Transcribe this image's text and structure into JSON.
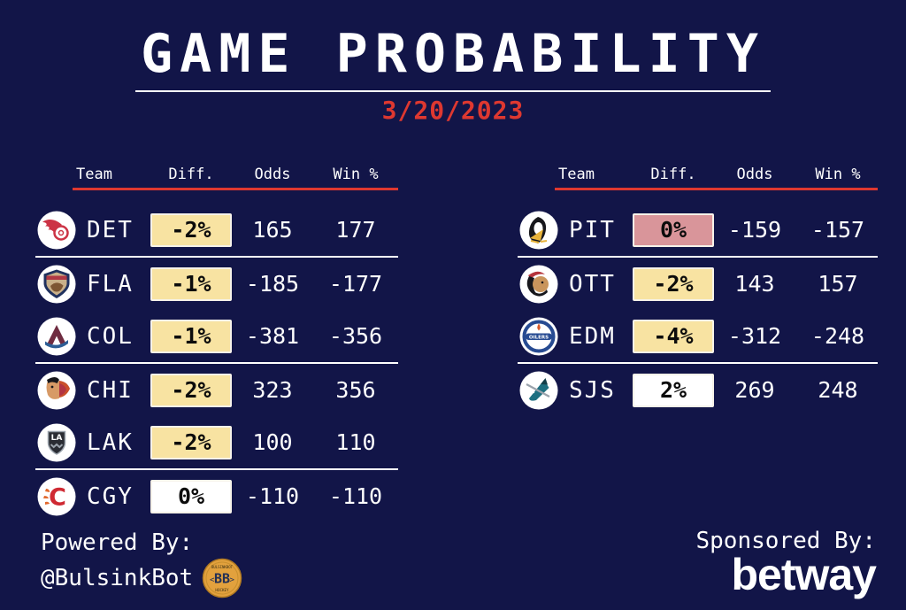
{
  "palette": {
    "bg": "#121548",
    "accent_red": "#de3830",
    "text": "#ffffff",
    "badge_yellow": "#f8e3a2",
    "badge_pink": "#d9959a",
    "badge_white": "#ffffff"
  },
  "header": {
    "title": "GAME PROBABILITY",
    "date": "3/20/2023"
  },
  "columns": [
    "Team",
    "Diff.",
    "Odds",
    "Win %"
  ],
  "tables": [
    {
      "id": "left",
      "rows": [
        {
          "team": "DET",
          "logo": "det",
          "diff": "-2%",
          "badge": "yellow",
          "odds": "165",
          "win": "177",
          "divider_after": true
        },
        {
          "team": "FLA",
          "logo": "fla",
          "diff": "-1%",
          "badge": "yellow",
          "odds": "-185",
          "win": "-177",
          "divider_after": false
        },
        {
          "team": "COL",
          "logo": "col",
          "diff": "-1%",
          "badge": "yellow",
          "odds": "-381",
          "win": "-356",
          "divider_after": true
        },
        {
          "team": "CHI",
          "logo": "chi",
          "diff": "-2%",
          "badge": "yellow",
          "odds": "323",
          "win": "356",
          "divider_after": false
        },
        {
          "team": "LAK",
          "logo": "lak",
          "diff": "-2%",
          "badge": "yellow",
          "odds": "100",
          "win": "110",
          "divider_after": true
        },
        {
          "team": "CGY",
          "logo": "cgy",
          "diff": "0%",
          "badge": "white",
          "odds": "-110",
          "win": "-110",
          "divider_after": false
        }
      ]
    },
    {
      "id": "right",
      "rows": [
        {
          "team": "PIT",
          "logo": "pit",
          "diff": "0%",
          "badge": "pink",
          "odds": "-159",
          "win": "-157",
          "divider_after": true
        },
        {
          "team": "OTT",
          "logo": "ott",
          "diff": "-2%",
          "badge": "yellow",
          "odds": "143",
          "win": "157",
          "divider_after": false
        },
        {
          "team": "EDM",
          "logo": "edm",
          "diff": "-4%",
          "badge": "yellow",
          "odds": "-312",
          "win": "-248",
          "divider_after": true
        },
        {
          "team": "SJS",
          "logo": "sjs",
          "diff": "2%",
          "badge": "white",
          "odds": "269",
          "win": "248",
          "divider_after": false
        }
      ]
    }
  ],
  "footer": {
    "powered_label": "Powered By:",
    "powered_handle": "@BulsinkBot",
    "coin_letters": "BB",
    "coin_top": "BULSINKBOT",
    "coin_bottom": "HOCKEY",
    "coin_color": "#e2a13d",
    "sponsored_label": "Sponsored By:",
    "sponsor_name": "betway"
  },
  "chart_data": [
    {
      "type": "table",
      "title": "GAME PROBABILITY",
      "subtitle": "3/20/2023",
      "columns": [
        "Team",
        "Diff.",
        "Odds",
        "Win %"
      ],
      "rows": [
        [
          "DET",
          "-2%",
          165,
          177
        ],
        [
          "FLA",
          "-1%",
          -185,
          -177
        ],
        [
          "COL",
          "-1%",
          -381,
          -356
        ],
        [
          "CHI",
          "-2%",
          323,
          356
        ],
        [
          "LAK",
          "-2%",
          100,
          110
        ],
        [
          "CGY",
          "0%",
          -110,
          -110
        ]
      ]
    },
    {
      "type": "table",
      "columns": [
        "Team",
        "Diff.",
        "Odds",
        "Win %"
      ],
      "rows": [
        [
          "PIT",
          "0%",
          -159,
          -157
        ],
        [
          "OTT",
          "-2%",
          143,
          157
        ],
        [
          "EDM",
          "-4%",
          -312,
          -248
        ],
        [
          "SJS",
          "2%",
          269,
          248
        ]
      ]
    }
  ]
}
